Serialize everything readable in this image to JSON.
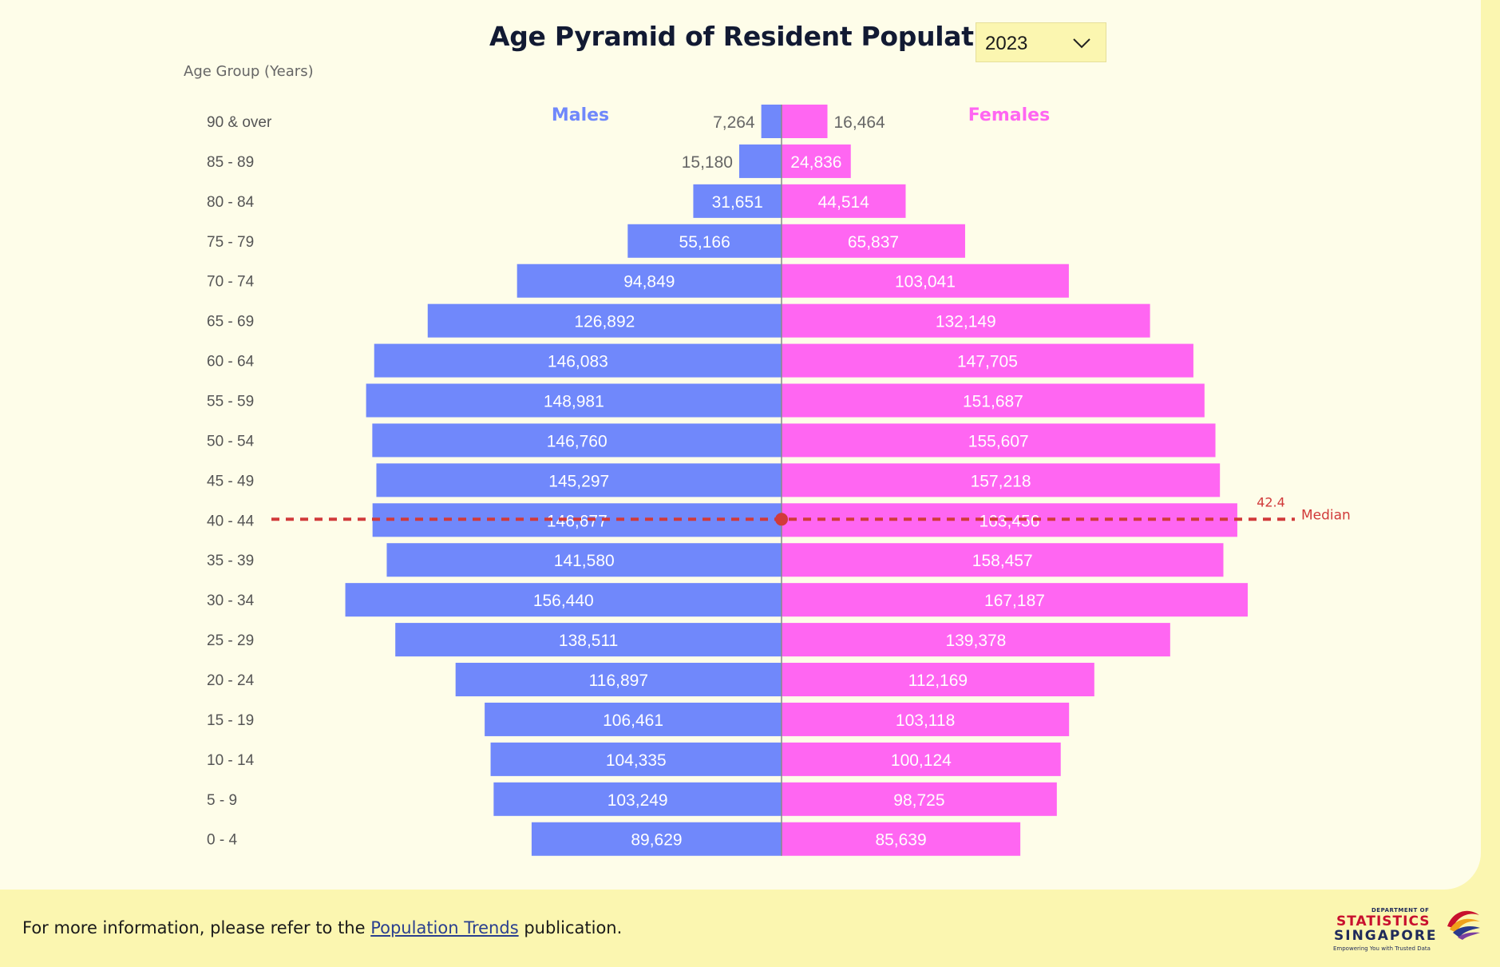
{
  "header": {
    "title": "Age Pyramid of Resident Population",
    "year_select": {
      "value": "2023",
      "icon": "chevron-down-icon"
    }
  },
  "footer": {
    "note_prefix": "For more information, please refer to the ",
    "link_text": "Population Trends",
    "note_suffix": " publication.",
    "logo": {
      "dept": "DEPARTMENT OF",
      "name1": "STATISTICS",
      "name2": "SINGAPORE",
      "tagline": "Empowering You with Trusted Data"
    }
  },
  "colors": {
    "males": "#7088fb",
    "females": "#ff66f2",
    "median": "#d13a3a",
    "panel": "#fefde9",
    "footer": "#fbf6b0"
  },
  "chart_data": {
    "type": "bar",
    "orientation": "horizontal-butterfly",
    "ylabel": "Age Group (Years)",
    "categories": [
      "90 & over",
      "85 - 89",
      "80 - 84",
      "75 - 79",
      "70 - 74",
      "65 - 69",
      "60 - 64",
      "55 - 59",
      "50 - 54",
      "45 - 49",
      "40 - 44",
      "35 - 39",
      "30 - 34",
      "25 - 29",
      "20 - 24",
      "15 - 19",
      "10 - 14",
      "5 - 9",
      "0 - 4"
    ],
    "series": [
      {
        "name": "Males",
        "side": "left",
        "values": [
          7264,
          15180,
          31651,
          55166,
          94849,
          126892,
          146083,
          148981,
          146760,
          145297,
          146677,
          141580,
          156440,
          138511,
          116897,
          106461,
          104335,
          103249,
          89629
        ],
        "labels": [
          "7,264",
          "15,180",
          "31,651",
          "55,166",
          "94,849",
          "126,892",
          "146,083",
          "148,981",
          "146,760",
          "145,297",
          "146,677",
          "141,580",
          "156,440",
          "138,511",
          "116,897",
          "106,461",
          "104,335",
          "103,249",
          "89,629"
        ]
      },
      {
        "name": "Females",
        "side": "right",
        "values": [
          16464,
          24836,
          44514,
          65837,
          103041,
          132149,
          147705,
          151687,
          155607,
          157218,
          163456,
          158457,
          167187,
          139378,
          112169,
          103118,
          100124,
          98725,
          85639
        ],
        "labels": [
          "16,464",
          "24,836",
          "44,514",
          "65,837",
          "103,041",
          "132,149",
          "147,705",
          "151,687",
          "155,607",
          "157,218",
          "163,456",
          "158,457",
          "167,187",
          "139,378",
          "112,169",
          "103,118",
          "100,124",
          "98,725",
          "85,639"
        ]
      }
    ],
    "median": {
      "value": 42.4,
      "value_label": "42.4",
      "label": "Median",
      "category": "40 - 44"
    },
    "legend_placement": "top, above each side",
    "grid": false
  }
}
